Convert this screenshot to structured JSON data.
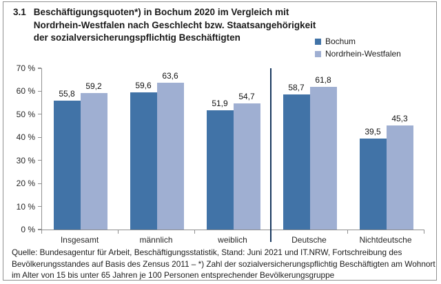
{
  "header": {
    "number": "3.1",
    "title_lines": [
      "Beschäftigungsquoten*) in Bochum 2020 im Vergleich mit",
      "Nordrhein-Westfalen nach Geschlecht bzw. Staatsangehörigkeit",
      "der sozialversicherungspflichtig Beschäftigten"
    ]
  },
  "legend": {
    "items": [
      {
        "label": "Bochum",
        "color": "#4173a7"
      },
      {
        "label": "Nordrhein-Westfalen",
        "color": "#9fafd2"
      }
    ]
  },
  "chart_data": {
    "type": "bar",
    "title": "Beschäftigungsquoten*) in Bochum 2020 im Vergleich mit Nordrhein-Westfalen nach Geschlecht bzw. Staatsangehörigkeit der sozialversicherungspflichtig Beschäftigten",
    "categories": [
      "Insgesamt",
      "männlich",
      "weiblich",
      "Deutsche",
      "Nichtdeutsche"
    ],
    "series": [
      {
        "name": "Bochum",
        "color": "#4173a7",
        "values": [
          55.8,
          59.6,
          51.9,
          58.7,
          39.5
        ],
        "labels": [
          "55,8",
          "59,6",
          "51,9",
          "58,7",
          "39,5"
        ]
      },
      {
        "name": "Nordrhein-Westfalen",
        "color": "#9fafd2",
        "values": [
          59.2,
          63.6,
          54.7,
          61.8,
          45.3
        ],
        "labels": [
          "59,2",
          "63,6",
          "54,7",
          "61,8",
          "45,3"
        ]
      }
    ],
    "ylim": [
      0,
      70
    ],
    "ytick_step": 10,
    "ytick_suffix": " %",
    "grid": false,
    "legend_position": "top-right",
    "divider_after_category_index": 2,
    "divider_color": "#17375e"
  },
  "source": {
    "lines": [
      "Quelle: Bundesagentur für Arbeit, Beschäftigungsstatistik, Stand: Juni 2021 und IT.NRW, Fortschreibung des",
      "Bevölkerungsstandes auf Basis des Zensus 2011 – *) Zahl der sozialversicherungspflichtig Beschäftigten am Wohnort",
      "im Alter von 15 bis unter 65 Jahren je 100 Personen entsprechender Bevölkerungsgruppe"
    ]
  },
  "colors": {
    "bochum": "#4173a7",
    "nrw": "#9fafd2",
    "divider": "#17375e",
    "axis": "#8f8f8f",
    "text": "#1a1a1a"
  }
}
